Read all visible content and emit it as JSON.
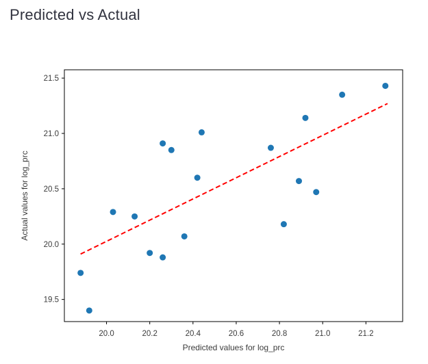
{
  "page": {
    "title": "Predicted vs Actual"
  },
  "chart_data": {
    "type": "scatter",
    "title": "Predicted vs Actual",
    "xlabel": "Predicted values for log_prc",
    "ylabel": "Actual values for log_prc",
    "xlim": [
      19.805,
      21.37
    ],
    "ylim": [
      19.3,
      21.575
    ],
    "x_ticks": [
      20.0,
      20.2,
      20.4,
      20.6,
      20.8,
      21.0,
      21.2
    ],
    "y_ticks": [
      19.5,
      20.0,
      20.5,
      21.0,
      21.5
    ],
    "grid": false,
    "legend": "none",
    "colors": {
      "marker": "#1f77b4",
      "trend": "#ff0000",
      "spine": "#000000"
    },
    "series": [
      {
        "name": "actual-vs-predicted-points",
        "kind": "scatter",
        "color": "#1f77b4",
        "marker_radius": 4.5,
        "points": [
          [
            19.88,
            19.74
          ],
          [
            19.92,
            19.4
          ],
          [
            20.03,
            20.29
          ],
          [
            20.13,
            20.25
          ],
          [
            20.2,
            19.92
          ],
          [
            20.26,
            19.88
          ],
          [
            20.26,
            20.91
          ],
          [
            20.3,
            20.85
          ],
          [
            20.36,
            20.07
          ],
          [
            20.42,
            20.6
          ],
          [
            20.44,
            21.01
          ],
          [
            20.76,
            20.87
          ],
          [
            20.82,
            20.18
          ],
          [
            20.89,
            20.57
          ],
          [
            20.92,
            21.14
          ],
          [
            20.97,
            20.47
          ],
          [
            21.09,
            21.35
          ],
          [
            21.29,
            21.43
          ]
        ]
      },
      {
        "name": "trend-line",
        "kind": "line",
        "style": "dashed",
        "color": "#ff0000",
        "line_width": 2,
        "points": [
          [
            19.88,
            19.91
          ],
          [
            21.3,
            21.27
          ]
        ]
      }
    ]
  }
}
